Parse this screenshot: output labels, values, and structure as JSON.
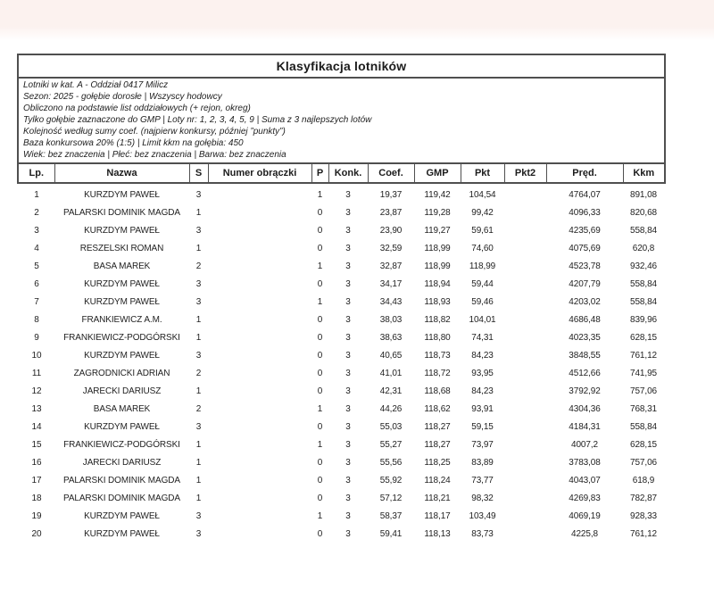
{
  "title": "Klasyfikacja lotników",
  "info_lines": [
    "Lotniki w kat. A - Oddział 0417 Milicz",
    "Sezon: 2025 - gołębie dorosłe  |  Wszyscy hodowcy",
    "Obliczono na podstawie list oddziałowych (+ rejon, okreg)",
    "Tylko gołębie zaznaczone do GMP  |  Loty nr: 1, 2, 3, 4, 5, 9  |  Suma z 3 najlepszych lotów",
    "Kolejność według sumy coef. (najpierw konkursy, później ”punkty”)",
    "Baza konkursowa 20% (1:5) | Limit kkm na gołębia: 450",
    "Wiek: bez znaczenia  |  Płeć: bez znaczenia  |  Barwa: bez znaczenia"
  ],
  "table": {
    "column_keys": [
      "lp",
      "nazwa",
      "s",
      "numer-obraczki",
      "p",
      "konk",
      "coef",
      "gmp",
      "pkt",
      "pkt2",
      "pred",
      "kkm"
    ],
    "columns": [
      "Lp.",
      "Nazwa",
      "S",
      "Numer obrączki",
      "P",
      "Konk.",
      "Coef.",
      "GMP",
      "Pkt",
      "Pkt2",
      "Pręd.",
      "Kkm"
    ],
    "rows": [
      [
        "1",
        "KURZDYM PAWEŁ",
        "3",
        "",
        "1",
        "3",
        "19,37",
        "119,42",
        "104,54",
        "",
        "4764,07",
        "891,08"
      ],
      [
        "2",
        "PALARSKI DOMINIK MAGDA",
        "1",
        "",
        "0",
        "3",
        "23,87",
        "119,28",
        "99,42",
        "",
        "4096,33",
        "820,68"
      ],
      [
        "3",
        "KURZDYM PAWEŁ",
        "3",
        "",
        "0",
        "3",
        "23,90",
        "119,27",
        "59,61",
        "",
        "4235,69",
        "558,84"
      ],
      [
        "4",
        "RESZELSKI ROMAN",
        "1",
        "",
        "0",
        "3",
        "32,59",
        "118,99",
        "74,60",
        "",
        "4075,69",
        "620,8"
      ],
      [
        "5",
        "BASA MAREK",
        "2",
        "",
        "1",
        "3",
        "32,87",
        "118,99",
        "118,99",
        "",
        "4523,78",
        "932,46"
      ],
      [
        "6",
        "KURZDYM PAWEŁ",
        "3",
        "",
        "0",
        "3",
        "34,17",
        "118,94",
        "59,44",
        "",
        "4207,79",
        "558,84"
      ],
      [
        "7",
        "KURZDYM PAWEŁ",
        "3",
        "",
        "1",
        "3",
        "34,43",
        "118,93",
        "59,46",
        "",
        "4203,02",
        "558,84"
      ],
      [
        "8",
        "FRANKIEWICZ A.M.",
        "1",
        "",
        "0",
        "3",
        "38,03",
        "118,82",
        "104,01",
        "",
        "4686,48",
        "839,96"
      ],
      [
        "9",
        "FRANKIEWICZ-PODGÓRSKI",
        "1",
        "",
        "0",
        "3",
        "38,63",
        "118,80",
        "74,31",
        "",
        "4023,35",
        "628,15"
      ],
      [
        "10",
        "KURZDYM PAWEŁ",
        "3",
        "",
        "0",
        "3",
        "40,65",
        "118,73",
        "84,23",
        "",
        "3848,55",
        "761,12"
      ],
      [
        "11",
        "ZAGRODNICKI ADRIAN",
        "2",
        "",
        "0",
        "3",
        "41,01",
        "118,72",
        "93,95",
        "",
        "4512,66",
        "741,95"
      ],
      [
        "12",
        "JARECKI DARIUSZ",
        "1",
        "",
        "0",
        "3",
        "42,31",
        "118,68",
        "84,23",
        "",
        "3792,92",
        "757,06"
      ],
      [
        "13",
        "BASA MAREK",
        "2",
        "",
        "1",
        "3",
        "44,26",
        "118,62",
        "93,91",
        "",
        "4304,36",
        "768,31"
      ],
      [
        "14",
        "KURZDYM PAWEŁ",
        "3",
        "",
        "0",
        "3",
        "55,03",
        "118,27",
        "59,15",
        "",
        "4184,31",
        "558,84"
      ],
      [
        "15",
        "FRANKIEWICZ-PODGÓRSKI",
        "1",
        "",
        "1",
        "3",
        "55,27",
        "118,27",
        "73,97",
        "",
        "4007,2",
        "628,15"
      ],
      [
        "16",
        "JARECKI DARIUSZ",
        "1",
        "",
        "0",
        "3",
        "55,56",
        "118,25",
        "83,89",
        "",
        "3783,08",
        "757,06"
      ],
      [
        "17",
        "PALARSKI DOMINIK MAGDA",
        "1",
        "",
        "0",
        "3",
        "55,92",
        "118,24",
        "73,77",
        "",
        "4043,07",
        "618,9"
      ],
      [
        "18",
        "PALARSKI DOMINIK MAGDA",
        "1",
        "",
        "0",
        "3",
        "57,12",
        "118,21",
        "98,32",
        "",
        "4269,83",
        "782,87"
      ],
      [
        "19",
        "KURZDYM PAWEŁ",
        "3",
        "",
        "1",
        "3",
        "58,37",
        "118,17",
        "103,49",
        "",
        "4069,19",
        "928,33"
      ],
      [
        "20",
        "KURZDYM PAWEŁ",
        "3",
        "",
        "0",
        "3",
        "59,41",
        "118,13",
        "83,73",
        "",
        "4225,8",
        "761,12"
      ]
    ]
  },
  "colors": {
    "page_top_tint": "#fcf2ef",
    "border": "#4f4f4f",
    "text": "#1c1c1c"
  }
}
